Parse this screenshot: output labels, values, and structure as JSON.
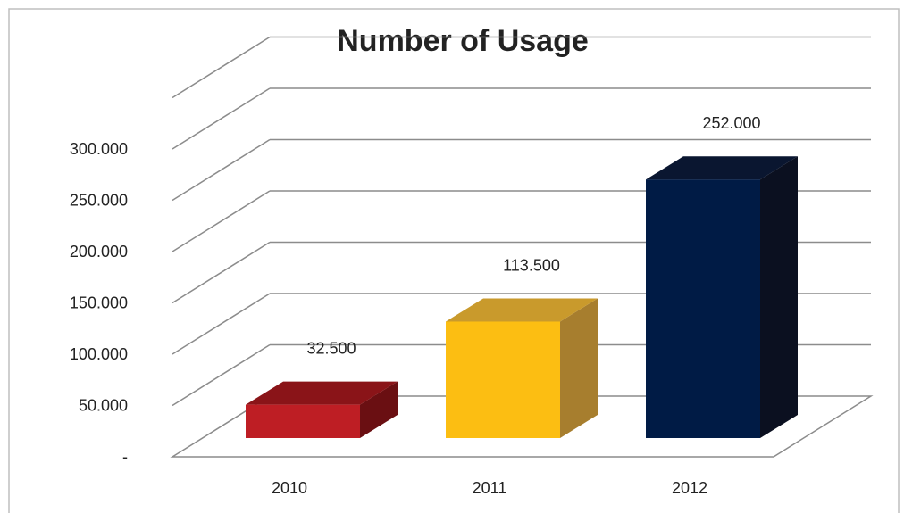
{
  "chart_data": {
    "type": "bar",
    "style": "3d-column",
    "title": "Number of Usage",
    "categories": [
      "2010",
      "2011",
      "2012"
    ],
    "values": [
      32500,
      113500,
      252000
    ],
    "data_labels": [
      "32.500",
      "113.500",
      "252.000"
    ],
    "y_ticks": [
      0,
      50000,
      100000,
      150000,
      200000,
      250000,
      300000
    ],
    "y_tick_labels": [
      "-",
      "50.000",
      "100.000",
      "150.000",
      "200.000",
      "250.000",
      "300.000"
    ],
    "ylim": [
      0,
      350000
    ],
    "grid": true,
    "legend": "none",
    "colors": {
      "2010": {
        "front": "#BE1E24",
        "top": "#8A1418",
        "side": "#6A0F12"
      },
      "2011": {
        "front": "#FCBE12",
        "top": "#C99A2C",
        "side": "#A77E2E"
      },
      "2012": {
        "front": "#001B45",
        "top": "#0A1630",
        "side": "#0B1020"
      },
      "grid": "#8C8C8C",
      "border": "#BFBFBF"
    }
  }
}
